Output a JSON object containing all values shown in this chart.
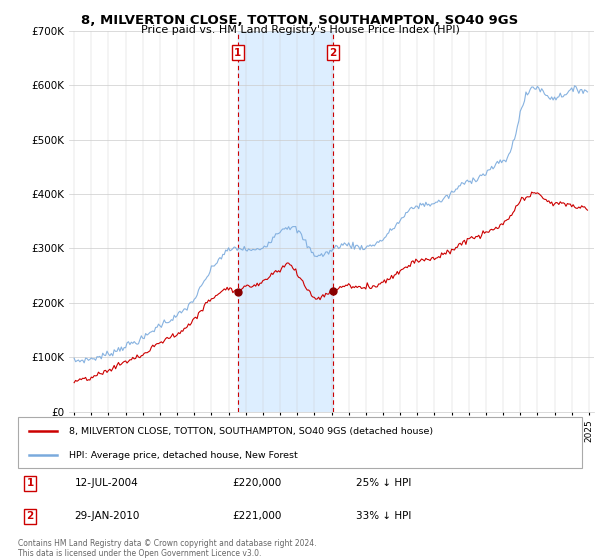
{
  "title": "8, MILVERTON CLOSE, TOTTON, SOUTHAMPTON, SO40 9GS",
  "subtitle": "Price paid vs. HM Land Registry's House Price Index (HPI)",
  "legend_line1": "8, MILVERTON CLOSE, TOTTON, SOUTHAMPTON, SO40 9GS (detached house)",
  "legend_line2": "HPI: Average price, detached house, New Forest",
  "annotation1_label": "1",
  "annotation1_date": "12-JUL-2004",
  "annotation1_price": "£220,000",
  "annotation1_hpi": "25% ↓ HPI",
  "annotation2_label": "2",
  "annotation2_date": "29-JAN-2010",
  "annotation2_price": "£221,000",
  "annotation2_hpi": "33% ↓ HPI",
  "footnote": "Contains HM Land Registry data © Crown copyright and database right 2024.\nThis data is licensed under the Open Government Licence v3.0.",
  "hpi_color": "#7aaadd",
  "price_color": "#cc0000",
  "vline_color": "#cc0000",
  "shade_color": "#ddeeff",
  "ylim": [
    0,
    700000
  ],
  "yticks": [
    0,
    100000,
    200000,
    300000,
    400000,
    500000,
    600000,
    700000
  ],
  "ytick_labels": [
    "£0",
    "£100K",
    "£200K",
    "£300K",
    "£400K",
    "£500K",
    "£600K",
    "£700K"
  ],
  "sale1_x": 2004.54,
  "sale1_y": 220000,
  "sale2_x": 2010.08,
  "sale2_y": 221000,
  "vline1_x": 2004.54,
  "vline2_x": 2010.08,
  "shade_x1": 2004.54,
  "shade_x2": 2010.08,
  "xmin": 1994.7,
  "xmax": 2025.3
}
